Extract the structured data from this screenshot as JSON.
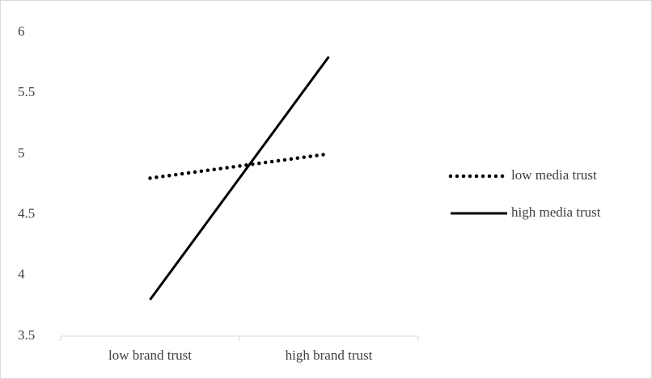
{
  "chart_data": {
    "type": "line",
    "categories": [
      "low brand trust",
      "high brand trust"
    ],
    "series": [
      {
        "name": "low media trust",
        "color": "#000000",
        "dash": "dotted",
        "values": [
          4.8,
          5.0
        ]
      },
      {
        "name": "high media trust",
        "color": "#000000",
        "dash": "solid",
        "values": [
          3.8,
          5.8
        ]
      }
    ],
    "ylim": [
      3.5,
      6
    ],
    "yticks": [
      3.5,
      4,
      4.5,
      5,
      5.5,
      6
    ],
    "grid": false,
    "legend": "right"
  }
}
